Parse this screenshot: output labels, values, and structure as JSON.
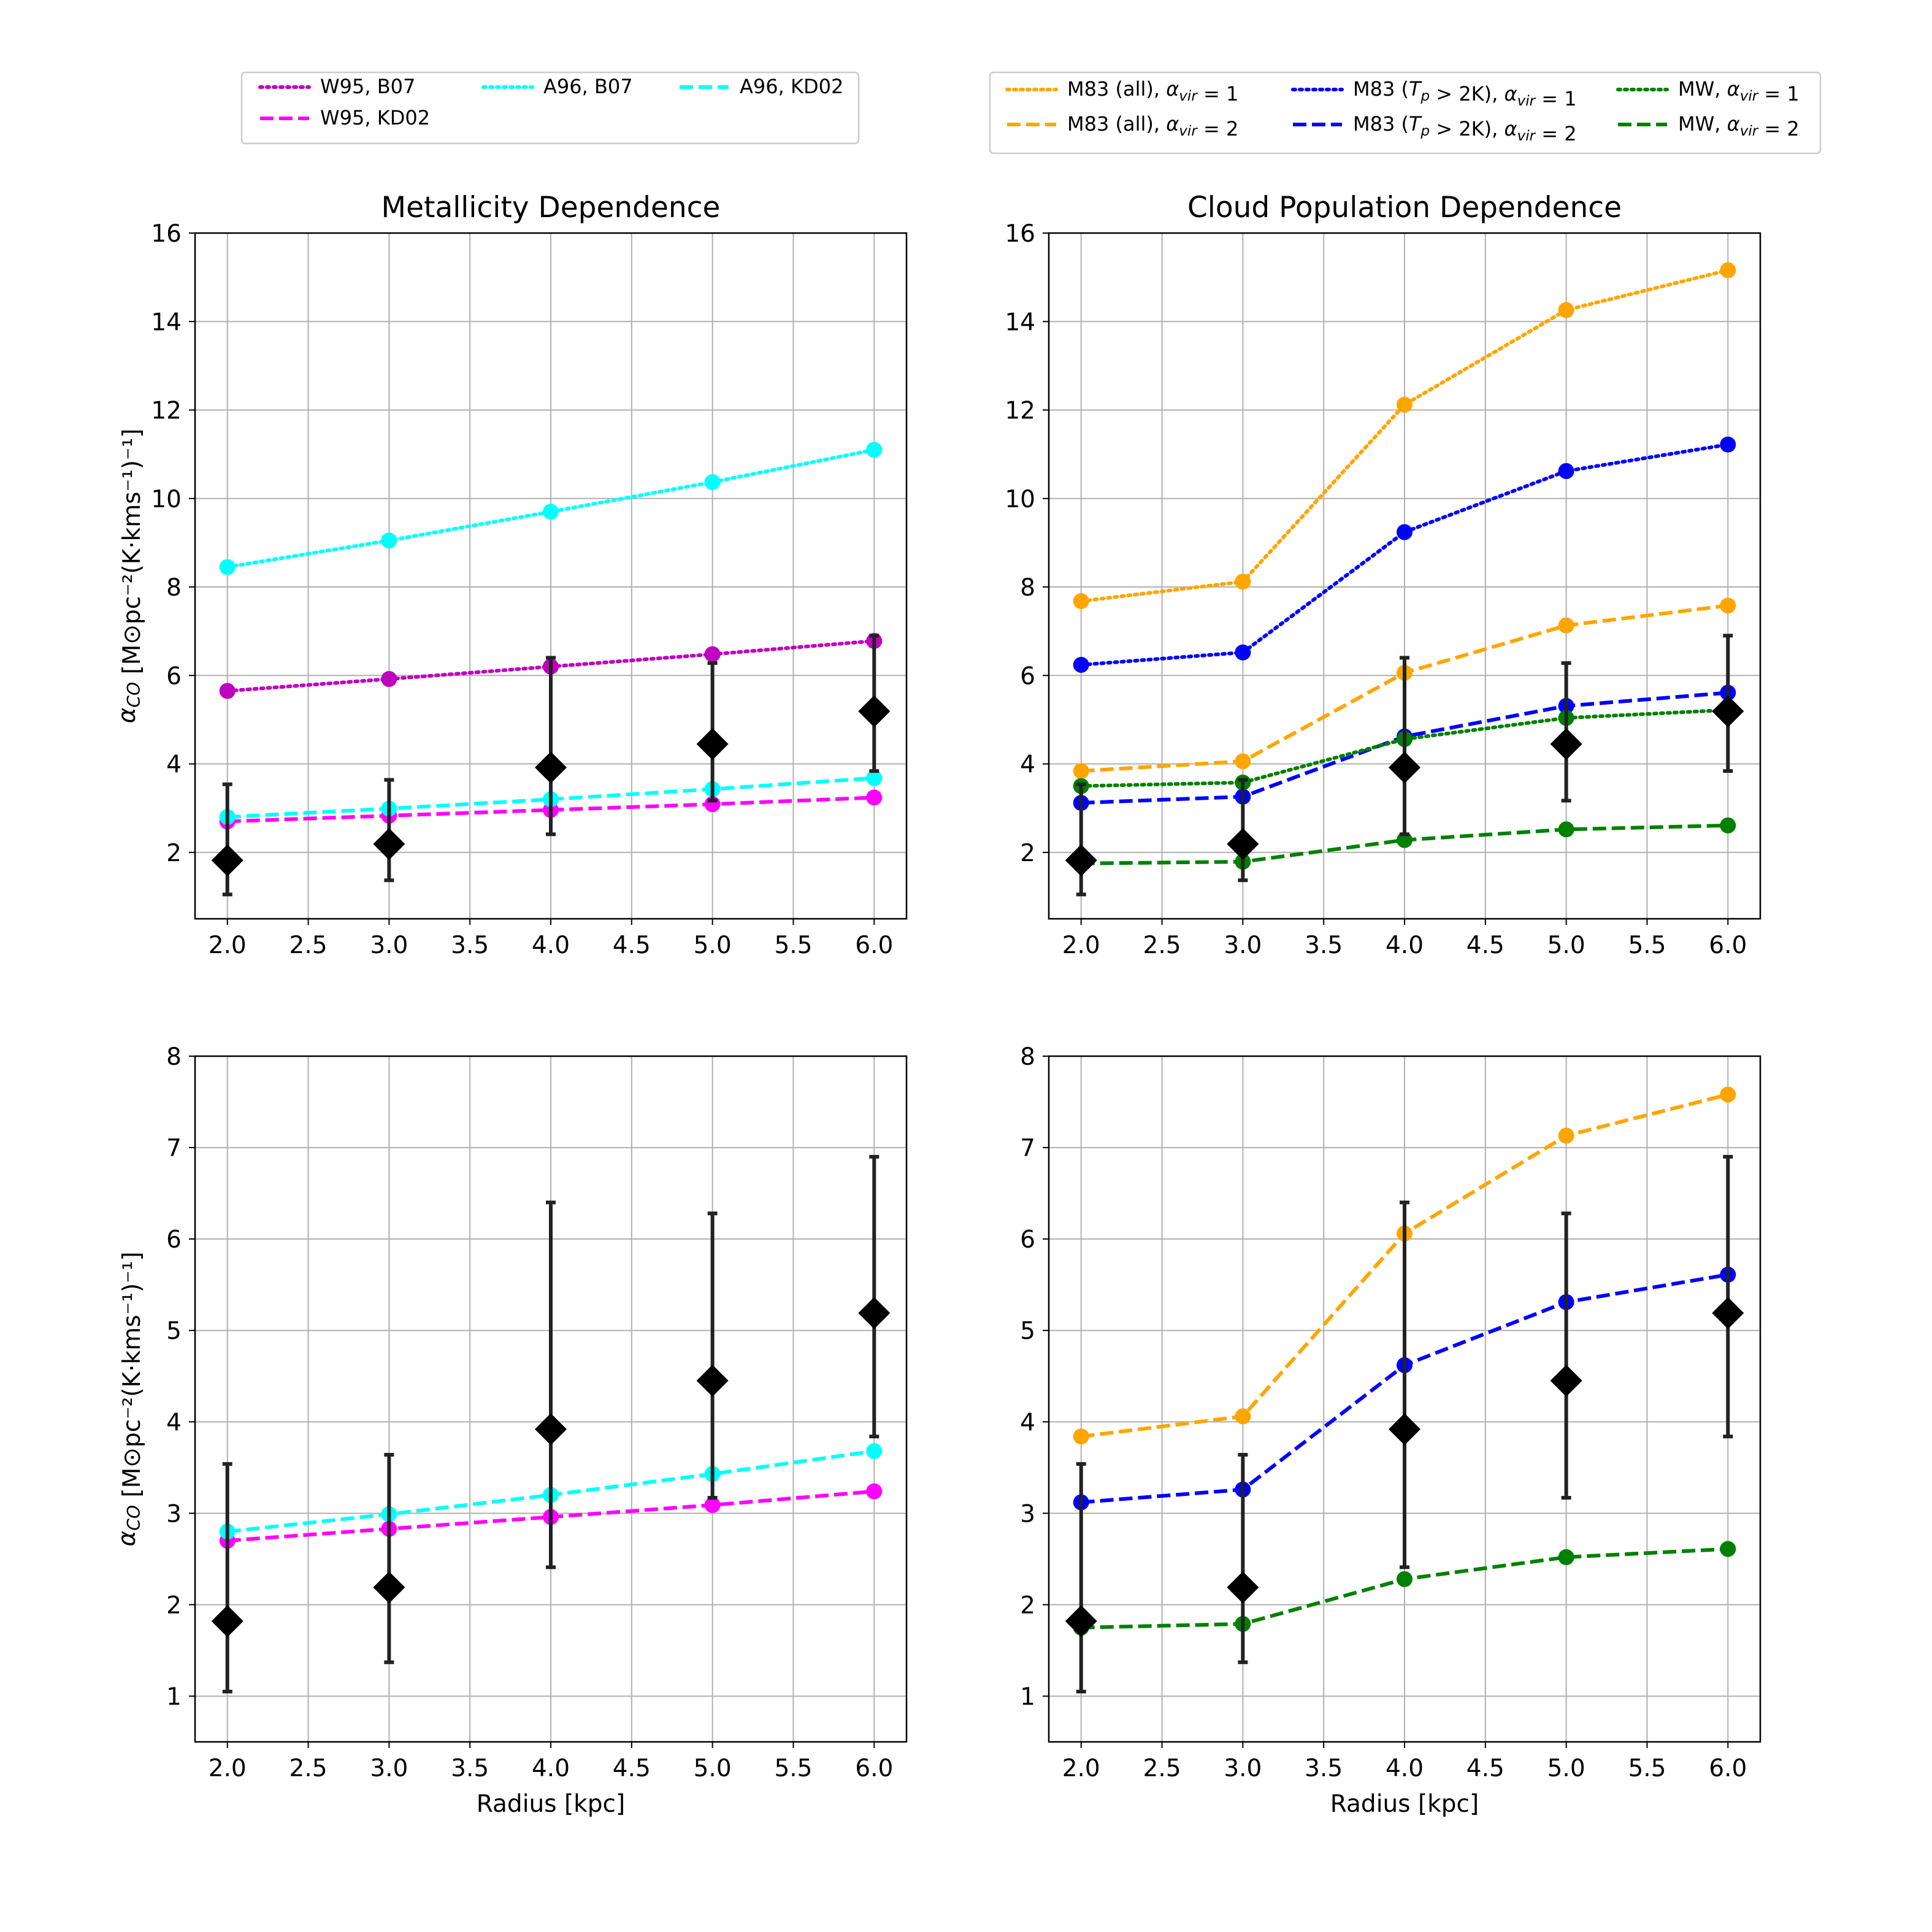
{
  "chart_data": [
    {
      "type": "line",
      "id": "top-left",
      "title": "Metallicity Dependence",
      "xlabel": "",
      "ylabel": "αCO [M⊙pc⁻²(K·kms⁻¹)⁻¹]",
      "xlim": [
        1.8,
        6.2
      ],
      "ylim": [
        0.5,
        16
      ],
      "xticks": [
        2.0,
        2.5,
        3.0,
        3.5,
        4.0,
        4.5,
        5.0,
        5.5,
        6.0
      ],
      "xtick_labels": [
        "2.0",
        "2.5",
        "3.0",
        "3.5",
        "4.0",
        "4.5",
        "5.0",
        "5.5",
        "6.0"
      ],
      "yticks": [
        2,
        4,
        6,
        8,
        10,
        12,
        14,
        16
      ],
      "ytick_labels": [
        "2",
        "4",
        "6",
        "8",
        "10",
        "12",
        "14",
        "16"
      ],
      "grid": true,
      "x": [
        2,
        3,
        4,
        5,
        6
      ],
      "series": [
        {
          "name": "W95, B07",
          "values": [
            5.65,
            5.92,
            6.2,
            6.48,
            6.78
          ],
          "color": "#bf00bf",
          "dash": "dot"
        },
        {
          "name": "W95, KD02",
          "values": [
            2.7,
            2.83,
            2.96,
            3.09,
            3.24
          ],
          "color": "#ff00ff",
          "dash": "dash"
        },
        {
          "name": "A96, B07",
          "values": [
            8.45,
            9.05,
            9.7,
            10.37,
            11.1
          ],
          "color": "#00ffff",
          "dash": "dot"
        },
        {
          "name": "A96, KD02",
          "values": [
            2.8,
            2.99,
            3.2,
            3.43,
            3.68
          ],
          "color": "#00ffff",
          "dash": "dash"
        }
      ],
      "observed": {
        "x": [
          2,
          3,
          4,
          5,
          6
        ],
        "values": [
          1.82,
          2.19,
          3.92,
          4.45,
          5.19
        ],
        "lower": [
          1.05,
          1.37,
          2.41,
          3.17,
          3.84
        ],
        "upper": [
          3.54,
          3.64,
          6.4,
          6.28,
          6.9
        ]
      }
    },
    {
      "type": "line",
      "id": "top-right",
      "title": "Cloud Population Dependence",
      "xlabel": "",
      "ylabel": "",
      "xlim": [
        1.8,
        6.2
      ],
      "ylim": [
        0.5,
        16
      ],
      "xticks": [
        2.0,
        2.5,
        3.0,
        3.5,
        4.0,
        4.5,
        5.0,
        5.5,
        6.0
      ],
      "xtick_labels": [
        "2.0",
        "2.5",
        "3.0",
        "3.5",
        "4.0",
        "4.5",
        "5.0",
        "5.5",
        "6.0"
      ],
      "yticks": [
        2,
        4,
        6,
        8,
        10,
        12,
        14,
        16
      ],
      "ytick_labels": [
        "2",
        "4",
        "6",
        "8",
        "10",
        "12",
        "14",
        "16"
      ],
      "grid": true,
      "x": [
        2,
        3,
        4,
        5,
        6
      ],
      "series": [
        {
          "name": "M83 (all), αvir = 1",
          "values": [
            7.68,
            8.12,
            12.12,
            14.26,
            15.16
          ],
          "color": "#ffa500",
          "dash": "dot"
        },
        {
          "name": "M83 (all), αvir = 2",
          "values": [
            3.84,
            4.06,
            6.06,
            7.13,
            7.58
          ],
          "color": "#ffa500",
          "dash": "dash"
        },
        {
          "name": "M83 (Tp > 2K), αvir = 1",
          "values": [
            6.24,
            6.52,
            9.24,
            10.62,
            11.22
          ],
          "color": "#0000ff",
          "dash": "dot"
        },
        {
          "name": "M83 (Tp > 2K), αvir = 2",
          "values": [
            3.12,
            3.26,
            4.62,
            5.31,
            5.61
          ],
          "color": "#0000ff",
          "dash": "dash"
        },
        {
          "name": "MW, αvir = 1",
          "values": [
            3.5,
            3.58,
            4.56,
            5.04,
            5.22
          ],
          "color": "#008000",
          "dash": "dot"
        },
        {
          "name": "MW, αvir = 2",
          "values": [
            1.75,
            1.79,
            2.28,
            2.52,
            2.61
          ],
          "color": "#008000",
          "dash": "dash"
        }
      ],
      "observed": {
        "x": [
          2,
          3,
          4,
          5,
          6
        ],
        "values": [
          1.82,
          2.19,
          3.92,
          4.45,
          5.19
        ],
        "lower": [
          1.05,
          1.37,
          2.41,
          3.17,
          3.84
        ],
        "upper": [
          3.54,
          3.64,
          6.4,
          6.28,
          6.9
        ]
      }
    },
    {
      "type": "line",
      "id": "bottom-left",
      "title": "",
      "xlabel": "Radius [kpc]",
      "ylabel": "αCO [M⊙pc⁻²(K·kms⁻¹)⁻¹]",
      "xlim": [
        1.8,
        6.2
      ],
      "ylim": [
        0.5,
        8
      ],
      "xticks": [
        2.0,
        2.5,
        3.0,
        3.5,
        4.0,
        4.5,
        5.0,
        5.5,
        6.0
      ],
      "xtick_labels": [
        "2.0",
        "2.5",
        "3.0",
        "3.5",
        "4.0",
        "4.5",
        "5.0",
        "5.5",
        "6.0"
      ],
      "yticks": [
        1,
        2,
        3,
        4,
        5,
        6,
        7,
        8
      ],
      "ytick_labels": [
        "1",
        "2",
        "3",
        "4",
        "5",
        "6",
        "7",
        "8"
      ],
      "grid": true,
      "x": [
        2,
        3,
        4,
        5,
        6
      ],
      "series": [
        {
          "name": "W95, KD02",
          "values": [
            2.7,
            2.83,
            2.96,
            3.09,
            3.24
          ],
          "color": "#ff00ff",
          "dash": "dash"
        },
        {
          "name": "A96, KD02",
          "values": [
            2.8,
            2.99,
            3.2,
            3.43,
            3.68
          ],
          "color": "#00ffff",
          "dash": "dash"
        }
      ],
      "observed": {
        "x": [
          2,
          3,
          4,
          5,
          6
        ],
        "values": [
          1.82,
          2.19,
          3.92,
          4.45,
          5.19
        ],
        "lower": [
          1.05,
          1.37,
          2.41,
          3.17,
          3.84
        ],
        "upper": [
          3.54,
          3.64,
          6.4,
          6.28,
          6.9
        ]
      }
    },
    {
      "type": "line",
      "id": "bottom-right",
      "title": "",
      "xlabel": "Radius [kpc]",
      "ylabel": "",
      "xlim": [
        1.8,
        6.2
      ],
      "ylim": [
        0.5,
        8
      ],
      "xticks": [
        2.0,
        2.5,
        3.0,
        3.5,
        4.0,
        4.5,
        5.0,
        5.5,
        6.0
      ],
      "xtick_labels": [
        "2.0",
        "2.5",
        "3.0",
        "3.5",
        "4.0",
        "4.5",
        "5.0",
        "5.5",
        "6.0"
      ],
      "yticks": [
        1,
        2,
        3,
        4,
        5,
        6,
        7,
        8
      ],
      "ytick_labels": [
        "1",
        "2",
        "3",
        "4",
        "5",
        "6",
        "7",
        "8"
      ],
      "grid": true,
      "x": [
        2,
        3,
        4,
        5,
        6
      ],
      "series": [
        {
          "name": "M83 (all), αvir = 2",
          "values": [
            3.84,
            4.06,
            6.06,
            7.13,
            7.58
          ],
          "color": "#ffa500",
          "dash": "dash"
        },
        {
          "name": "M83 (Tp > 2K), αvir = 2",
          "values": [
            3.12,
            3.26,
            4.62,
            5.31,
            5.61
          ],
          "color": "#0000ff",
          "dash": "dash"
        },
        {
          "name": "MW, αvir = 2",
          "values": [
            1.75,
            1.79,
            2.28,
            2.52,
            2.61
          ],
          "color": "#008000",
          "dash": "dash"
        }
      ],
      "observed": {
        "x": [
          2,
          3,
          4,
          5,
          6
        ],
        "values": [
          1.82,
          2.19,
          3.92,
          4.45,
          5.19
        ],
        "lower": [
          1.05,
          1.37,
          2.41,
          3.17,
          3.84
        ],
        "upper": [
          3.54,
          3.64,
          6.4,
          6.28,
          6.9
        ]
      }
    }
  ],
  "legends": [
    {
      "placement": "top-left",
      "entries": [
        {
          "label": "W95, B07",
          "color": "#bf00bf",
          "dash": "dot"
        },
        {
          "label": "A96, B07",
          "color": "#00ffff",
          "dash": "dot"
        },
        {
          "label": "A96, KD02",
          "color": "#00ffff",
          "dash": "dash"
        },
        {
          "label": "W95, KD02",
          "color": "#ff00ff",
          "dash": "dash"
        }
      ]
    },
    {
      "placement": "top-right",
      "entries": [
        {
          "label": "M83 (all), αvir = 1",
          "color": "#ffa500",
          "dash": "dot"
        },
        {
          "label": "M83 (Tp > 2K), αvir = 1",
          "color": "#0000ff",
          "dash": "dot"
        },
        {
          "label": "MW, αvir = 1",
          "color": "#008000",
          "dash": "dot"
        },
        {
          "label": "M83 (all), αvir = 2",
          "color": "#ffa500",
          "dash": "dash"
        },
        {
          "label": "M83 (Tp > 2K), αvir = 2",
          "color": "#0000ff",
          "dash": "dash"
        },
        {
          "label": "MW, αvir = 2",
          "color": "#008000",
          "dash": "dash"
        }
      ]
    }
  ]
}
